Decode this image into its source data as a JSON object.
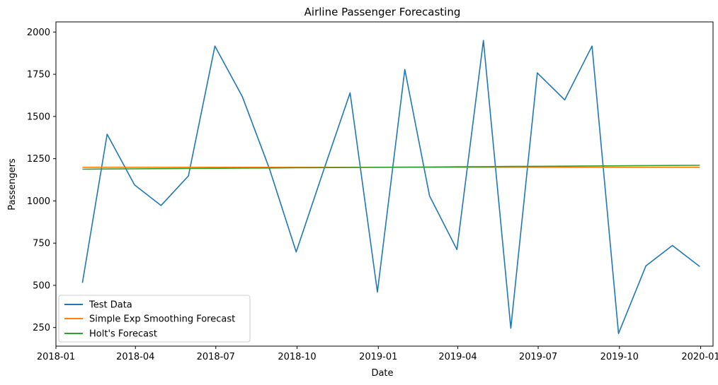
{
  "chart_data": {
    "type": "line",
    "title": "Airline Passenger Forecasting",
    "xlabel": "Date",
    "ylabel": "Passengers",
    "x": [
      "2018-01-31",
      "2018-02-28",
      "2018-03-31",
      "2018-04-30",
      "2018-05-31",
      "2018-06-30",
      "2018-07-31",
      "2018-08-31",
      "2018-09-30",
      "2018-10-31",
      "2018-11-30",
      "2018-12-31",
      "2019-01-31",
      "2019-02-28",
      "2019-03-31",
      "2019-04-30",
      "2019-05-31",
      "2019-06-30",
      "2019-07-31",
      "2019-08-31",
      "2019-09-30",
      "2019-10-31",
      "2019-11-30",
      "2019-12-31"
    ],
    "xlim": [
      "2018-01-01",
      "2020-01-15"
    ],
    "ylim": [
      140,
      2060
    ],
    "x_ticks": [
      {
        "date": "2018-01-01",
        "label": "2018-01"
      },
      {
        "date": "2018-04-01",
        "label": "2018-04"
      },
      {
        "date": "2018-07-01",
        "label": "2018-07"
      },
      {
        "date": "2018-10-01",
        "label": "2018-10"
      },
      {
        "date": "2019-01-01",
        "label": "2019-01"
      },
      {
        "date": "2019-04-01",
        "label": "2019-04"
      },
      {
        "date": "2019-07-01",
        "label": "2019-07"
      },
      {
        "date": "2019-10-01",
        "label": "2019-10"
      },
      {
        "date": "2020-01-01",
        "label": "2020-01"
      }
    ],
    "y_ticks": [
      250,
      500,
      750,
      1000,
      1250,
      1500,
      1750,
      2000
    ],
    "series": [
      {
        "name": "Test Data",
        "color": "#1f77b4",
        "values": [
          515,
          1395,
          1095,
          973,
          1148,
          1917,
          1618,
          1187,
          698,
          1180,
          1640,
          460,
          1778,
          1030,
          712,
          1950,
          246,
          1758,
          1598,
          1917,
          215,
          615,
          736,
          611
        ]
      },
      {
        "name": "Simple Exp Smoothing Forecast",
        "color": "#ff7f0e",
        "values": [
          1199,
          1199,
          1199,
          1199,
          1199,
          1199,
          1199,
          1199,
          1199,
          1199,
          1199,
          1199,
          1199,
          1199,
          1199,
          1199,
          1199,
          1199,
          1199,
          1199,
          1199,
          1199,
          1199,
          1199
        ]
      },
      {
        "name": "Holt's Forecast",
        "color": "#2ca02c",
        "values": [
          1188,
          1189,
          1190,
          1191,
          1192,
          1193,
          1194,
          1195,
          1196,
          1197,
          1198,
          1199,
          1200,
          1201,
          1202,
          1203,
          1204,
          1205,
          1206,
          1207,
          1208,
          1209,
          1210,
          1211
        ]
      }
    ],
    "legend_position": "bottom-left",
    "grid": false
  }
}
